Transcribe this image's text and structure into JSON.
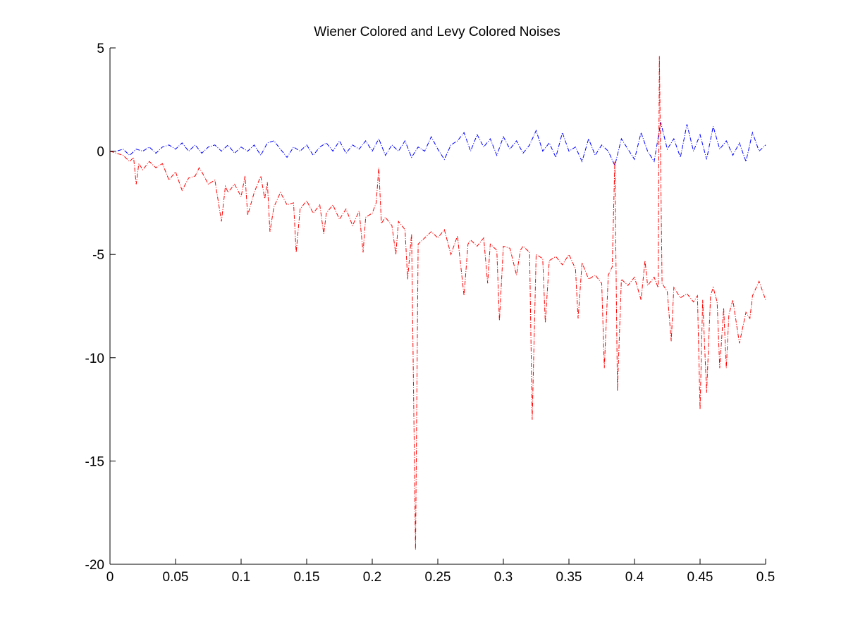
{
  "chart_data": {
    "type": "line",
    "title": "Wiener Colored and Levy Colored Noises",
    "xlabel": "",
    "ylabel": "",
    "xlim": [
      0,
      0.5
    ],
    "ylim": [
      -20,
      5
    ],
    "x_ticks": [
      0,
      0.05,
      0.1,
      0.15,
      0.2,
      0.25,
      0.3,
      0.35,
      0.4,
      0.45,
      0.5
    ],
    "x_tick_labels": [
      "0",
      "0.05",
      "0.1",
      "0.15",
      "0.2",
      "0.25",
      "0.3",
      "0.35",
      "0.4",
      "0.45",
      "0.5"
    ],
    "y_ticks": [
      -20,
      -15,
      -10,
      -5,
      0,
      5
    ],
    "y_tick_labels": [
      "-20",
      "-15",
      "-10",
      "-5",
      "0",
      "5"
    ],
    "grid": false,
    "legend": "none",
    "series": [
      {
        "color": "#0000ff",
        "line_style": "dash-dot",
        "description_points": "x,y",
        "points": [
          [
            0.0,
            0.0
          ],
          [
            0.005,
            0.0
          ],
          [
            0.01,
            0.1
          ],
          [
            0.015,
            -0.2
          ],
          [
            0.02,
            0.1
          ],
          [
            0.025,
            0.0
          ],
          [
            0.03,
            0.2
          ],
          [
            0.035,
            -0.1
          ],
          [
            0.04,
            0.2
          ],
          [
            0.045,
            0.3
          ],
          [
            0.05,
            0.1
          ],
          [
            0.055,
            0.4
          ],
          [
            0.06,
            0.0
          ],
          [
            0.065,
            0.3
          ],
          [
            0.07,
            -0.1
          ],
          [
            0.075,
            0.2
          ],
          [
            0.08,
            0.3
          ],
          [
            0.085,
            0.0
          ],
          [
            0.09,
            0.3
          ],
          [
            0.095,
            -0.1
          ],
          [
            0.1,
            0.2
          ],
          [
            0.105,
            0.0
          ],
          [
            0.11,
            0.3
          ],
          [
            0.115,
            -0.2
          ],
          [
            0.12,
            0.4
          ],
          [
            0.125,
            0.5
          ],
          [
            0.13,
            0.1
          ],
          [
            0.135,
            -0.3
          ],
          [
            0.14,
            0.2
          ],
          [
            0.145,
            0.0
          ],
          [
            0.15,
            0.3
          ],
          [
            0.155,
            -0.2
          ],
          [
            0.16,
            0.2
          ],
          [
            0.165,
            0.4
          ],
          [
            0.17,
            0.0
          ],
          [
            0.175,
            0.5
          ],
          [
            0.18,
            -0.1
          ],
          [
            0.185,
            0.3
          ],
          [
            0.19,
            0.1
          ],
          [
            0.195,
            0.5
          ],
          [
            0.2,
            0.0
          ],
          [
            0.205,
            0.6
          ],
          [
            0.21,
            -0.2
          ],
          [
            0.215,
            0.3
          ],
          [
            0.22,
            0.0
          ],
          [
            0.225,
            0.5
          ],
          [
            0.23,
            -0.3
          ],
          [
            0.235,
            0.2
          ],
          [
            0.24,
            0.0
          ],
          [
            0.245,
            0.7
          ],
          [
            0.25,
            0.1
          ],
          [
            0.255,
            -0.4
          ],
          [
            0.26,
            0.3
          ],
          [
            0.265,
            0.5
          ],
          [
            0.27,
            0.9
          ],
          [
            0.275,
            0.0
          ],
          [
            0.28,
            0.8
          ],
          [
            0.285,
            0.2
          ],
          [
            0.29,
            0.6
          ],
          [
            0.295,
            -0.2
          ],
          [
            0.3,
            0.7
          ],
          [
            0.305,
            0.1
          ],
          [
            0.31,
            0.5
          ],
          [
            0.315,
            -0.1
          ],
          [
            0.32,
            0.3
          ],
          [
            0.325,
            1.0
          ],
          [
            0.33,
            0.0
          ],
          [
            0.335,
            0.4
          ],
          [
            0.34,
            -0.3
          ],
          [
            0.345,
            0.9
          ],
          [
            0.35,
            0.0
          ],
          [
            0.355,
            0.2
          ],
          [
            0.36,
            -0.5
          ],
          [
            0.365,
            0.6
          ],
          [
            0.37,
            -0.2
          ],
          [
            0.375,
            0.3
          ],
          [
            0.38,
            0.0
          ],
          [
            0.385,
            -0.7
          ],
          [
            0.39,
            0.6
          ],
          [
            0.395,
            0.1
          ],
          [
            0.4,
            -0.4
          ],
          [
            0.405,
            0.9
          ],
          [
            0.41,
            0.0
          ],
          [
            0.415,
            -0.5
          ],
          [
            0.42,
            1.4
          ],
          [
            0.425,
            0.1
          ],
          [
            0.43,
            0.6
          ],
          [
            0.435,
            -0.3
          ],
          [
            0.44,
            1.3
          ],
          [
            0.445,
            0.0
          ],
          [
            0.45,
            0.8
          ],
          [
            0.455,
            -0.4
          ],
          [
            0.46,
            1.2
          ],
          [
            0.465,
            0.1
          ],
          [
            0.47,
            0.5
          ],
          [
            0.475,
            -0.2
          ],
          [
            0.48,
            0.4
          ],
          [
            0.485,
            -0.5
          ],
          [
            0.49,
            0.9
          ],
          [
            0.495,
            0.0
          ],
          [
            0.5,
            0.3
          ]
        ]
      },
      {
        "color": "#ff0000",
        "line_style": "dash-dot",
        "points": [
          [
            0.0,
            0.0
          ],
          [
            0.005,
            -0.1
          ],
          [
            0.01,
            -0.2
          ],
          [
            0.015,
            -0.5
          ],
          [
            0.018,
            -0.3
          ],
          [
            0.02,
            -1.6
          ],
          [
            0.022,
            -0.6
          ],
          [
            0.025,
            -0.9
          ],
          [
            0.03,
            -0.5
          ],
          [
            0.035,
            -0.8
          ],
          [
            0.04,
            -0.6
          ],
          [
            0.045,
            -1.4
          ],
          [
            0.05,
            -1.0
          ],
          [
            0.055,
            -1.9
          ],
          [
            0.06,
            -1.3
          ],
          [
            0.065,
            -1.2
          ],
          [
            0.068,
            -0.8
          ],
          [
            0.07,
            -1.0
          ],
          [
            0.075,
            -1.6
          ],
          [
            0.08,
            -1.4
          ],
          [
            0.085,
            -3.4
          ],
          [
            0.088,
            -1.7
          ],
          [
            0.09,
            -2.0
          ],
          [
            0.095,
            -1.6
          ],
          [
            0.1,
            -2.2
          ],
          [
            0.103,
            -1.2
          ],
          [
            0.105,
            -3.1
          ],
          [
            0.11,
            -2.0
          ],
          [
            0.115,
            -1.2
          ],
          [
            0.118,
            -2.3
          ],
          [
            0.12,
            -1.5
          ],
          [
            0.122,
            -3.9
          ],
          [
            0.125,
            -2.7
          ],
          [
            0.13,
            -2.0
          ],
          [
            0.135,
            -2.6
          ],
          [
            0.14,
            -2.5
          ],
          [
            0.142,
            -4.9
          ],
          [
            0.145,
            -2.8
          ],
          [
            0.15,
            -2.4
          ],
          [
            0.155,
            -3.0
          ],
          [
            0.16,
            -2.6
          ],
          [
            0.163,
            -4.0
          ],
          [
            0.165,
            -3.0
          ],
          [
            0.17,
            -2.6
          ],
          [
            0.175,
            -3.3
          ],
          [
            0.18,
            -2.8
          ],
          [
            0.185,
            -3.6
          ],
          [
            0.19,
            -2.9
          ],
          [
            0.193,
            -4.9
          ],
          [
            0.195,
            -3.2
          ],
          [
            0.2,
            -3.0
          ],
          [
            0.203,
            -2.5
          ],
          [
            0.205,
            -0.8
          ],
          [
            0.207,
            -3.5
          ],
          [
            0.21,
            -3.2
          ],
          [
            0.215,
            -3.6
          ],
          [
            0.218,
            -5.0
          ],
          [
            0.22,
            -3.4
          ],
          [
            0.225,
            -3.8
          ],
          [
            0.227,
            -6.2
          ],
          [
            0.23,
            -4.0
          ],
          [
            0.233,
            -19.3
          ],
          [
            0.235,
            -4.5
          ],
          [
            0.24,
            -4.2
          ],
          [
            0.245,
            -3.9
          ],
          [
            0.25,
            -4.2
          ],
          [
            0.255,
            -3.8
          ],
          [
            0.26,
            -5.0
          ],
          [
            0.265,
            -4.1
          ],
          [
            0.27,
            -7.0
          ],
          [
            0.273,
            -4.5
          ],
          [
            0.275,
            -4.3
          ],
          [
            0.28,
            -4.6
          ],
          [
            0.285,
            -4.2
          ],
          [
            0.288,
            -6.4
          ],
          [
            0.29,
            -4.5
          ],
          [
            0.295,
            -4.8
          ],
          [
            0.297,
            -8.2
          ],
          [
            0.3,
            -4.6
          ],
          [
            0.305,
            -4.7
          ],
          [
            0.31,
            -6.0
          ],
          [
            0.313,
            -4.8
          ],
          [
            0.315,
            -4.6
          ],
          [
            0.32,
            -4.9
          ],
          [
            0.322,
            -13.0
          ],
          [
            0.325,
            -5.0
          ],
          [
            0.33,
            -5.2
          ],
          [
            0.332,
            -8.3
          ],
          [
            0.335,
            -5.3
          ],
          [
            0.34,
            -5.1
          ],
          [
            0.345,
            -5.5
          ],
          [
            0.35,
            -5.0
          ],
          [
            0.355,
            -5.7
          ],
          [
            0.357,
            -8.1
          ],
          [
            0.36,
            -5.4
          ],
          [
            0.365,
            -6.2
          ],
          [
            0.37,
            -6.0
          ],
          [
            0.375,
            -6.4
          ],
          [
            0.377,
            -10.5
          ],
          [
            0.38,
            -6.0
          ],
          [
            0.383,
            -5.6
          ],
          [
            0.385,
            -0.5
          ],
          [
            0.387,
            -11.6
          ],
          [
            0.39,
            -6.2
          ],
          [
            0.395,
            -6.5
          ],
          [
            0.4,
            -6.1
          ],
          [
            0.405,
            -7.2
          ],
          [
            0.408,
            -5.3
          ],
          [
            0.41,
            -6.5
          ],
          [
            0.415,
            -6.1
          ],
          [
            0.418,
            -6.6
          ],
          [
            0.419,
            4.6
          ],
          [
            0.421,
            -6.4
          ],
          [
            0.425,
            -6.8
          ],
          [
            0.428,
            -9.2
          ],
          [
            0.43,
            -6.6
          ],
          [
            0.435,
            -7.1
          ],
          [
            0.44,
            -6.9
          ],
          [
            0.445,
            -7.3
          ],
          [
            0.448,
            -7.0
          ],
          [
            0.45,
            -12.5
          ],
          [
            0.452,
            -7.2
          ],
          [
            0.455,
            -11.7
          ],
          [
            0.458,
            -7.0
          ],
          [
            0.46,
            -6.6
          ],
          [
            0.463,
            -7.3
          ],
          [
            0.465,
            -10.5
          ],
          [
            0.468,
            -7.6
          ],
          [
            0.47,
            -10.5
          ],
          [
            0.472,
            -7.9
          ],
          [
            0.475,
            -7.2
          ],
          [
            0.48,
            -9.3
          ],
          [
            0.485,
            -7.8
          ],
          [
            0.488,
            -8.1
          ],
          [
            0.49,
            -7.0
          ],
          [
            0.495,
            -6.3
          ],
          [
            0.5,
            -7.2
          ]
        ]
      }
    ]
  }
}
